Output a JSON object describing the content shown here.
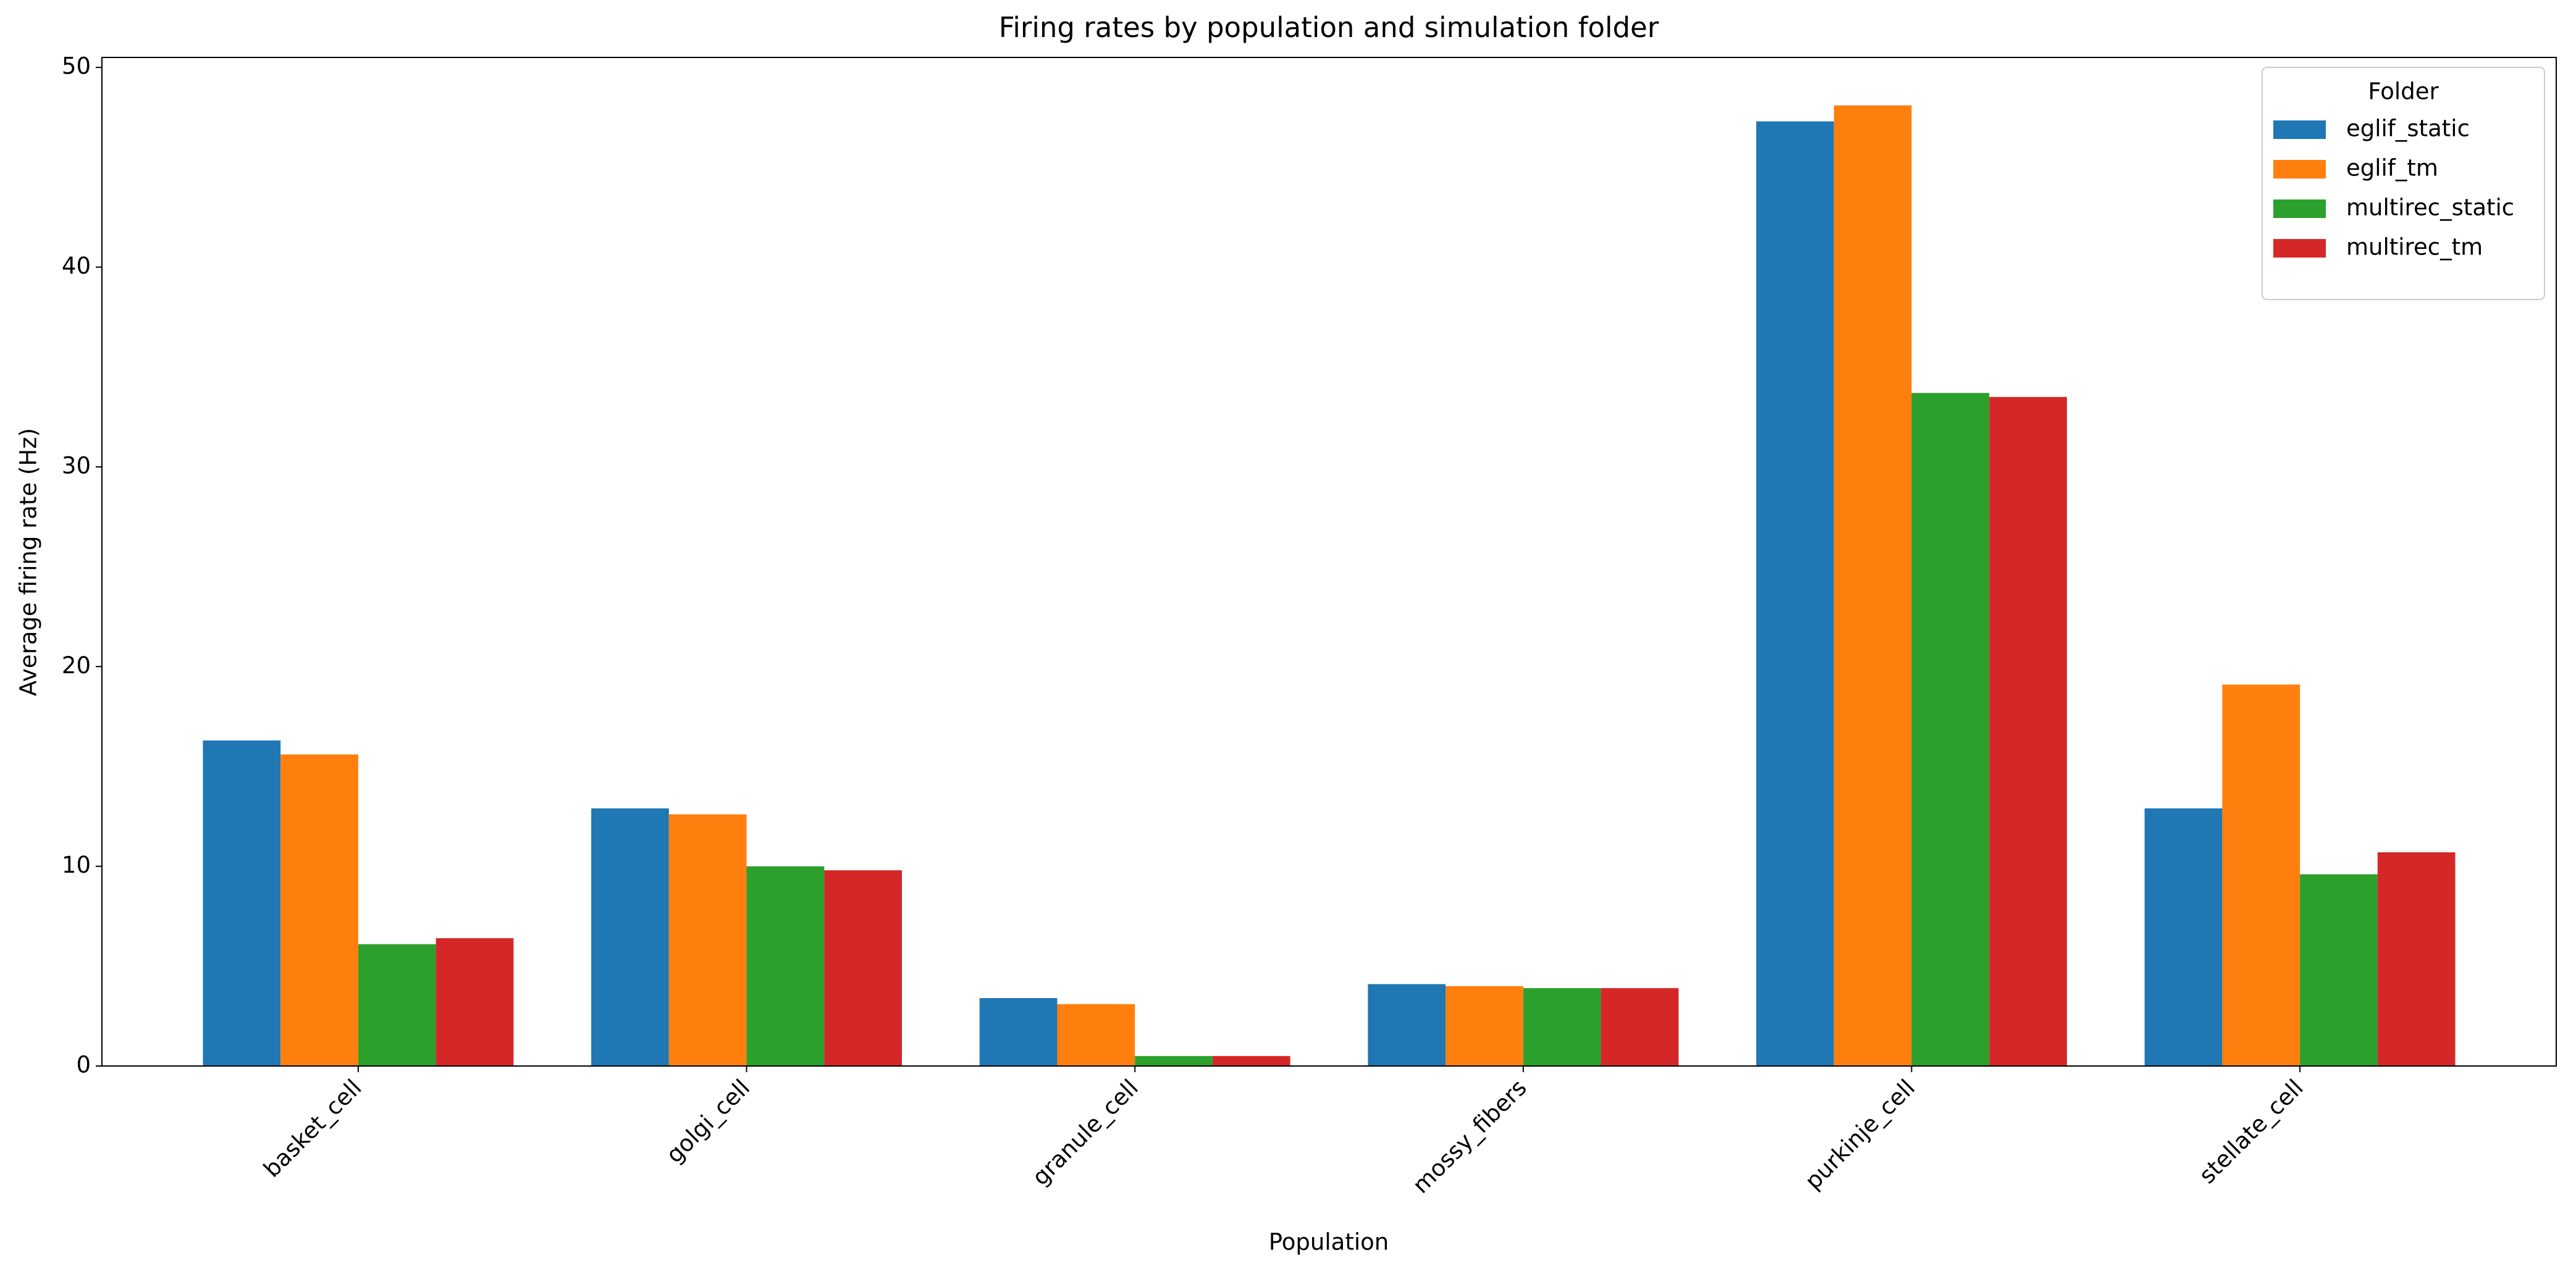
{
  "chart_data": {
    "type": "bar",
    "title": "Firing rates by population and simulation folder",
    "x_label": "Population",
    "y_label": "Average firing rate (Hz)",
    "categories": [
      "basket_cell",
      "golgi_cell",
      "granule_cell",
      "mossy_fibers",
      "purkinje_cell",
      "stellate_cell"
    ],
    "series": [
      {
        "name": "eglif_static",
        "color": "#1f77b4",
        "values": [
          16.3,
          12.9,
          3.4,
          4.1,
          47.3,
          12.9
        ]
      },
      {
        "name": "eglif_tm",
        "color": "#ff7f0e",
        "values": [
          15.6,
          12.6,
          3.1,
          4.0,
          48.1,
          19.1
        ]
      },
      {
        "name": "multirec_static",
        "color": "#2ca02c",
        "values": [
          6.1,
          10.0,
          0.5,
          3.9,
          33.7,
          9.6
        ]
      },
      {
        "name": "multirec_tm",
        "color": "#d62728",
        "values": [
          6.4,
          9.8,
          0.5,
          3.9,
          33.5,
          10.7
        ]
      }
    ],
    "legend_title": "Folder",
    "legend": "upper right",
    "ylim": [
      0,
      50.5
    ],
    "yticks": [
      0,
      10,
      20,
      30,
      40,
      50
    ],
    "grid": false
  }
}
